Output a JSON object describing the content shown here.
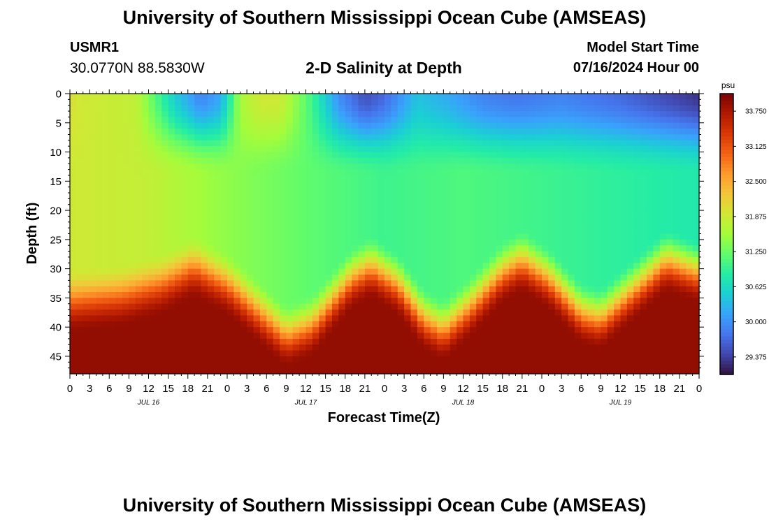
{
  "header": {
    "title": "University of Southern Mississippi Ocean Cube (AMSEAS)",
    "station": "USMR1",
    "coords": "30.0770N  88.5830W",
    "chart_title": "2-D Salinity at Depth",
    "start_label": "Model Start Time",
    "start_value": "07/16/2024 Hour 00"
  },
  "footer": {
    "title": "University of Southern Mississippi Ocean Cube (AMSEAS)"
  },
  "chart_data": {
    "type": "heatmap",
    "title": "2-D Salinity at Depth",
    "xlabel": "Forecast Time(Z)",
    "ylabel": "Depth (ft)",
    "x_ticks": [
      "0",
      "3",
      "6",
      "9",
      "12",
      "15",
      "18",
      "21",
      "0",
      "3",
      "6",
      "9",
      "12",
      "15",
      "18",
      "21",
      "0",
      "3",
      "6",
      "9",
      "12",
      "15",
      "18",
      "21",
      "0",
      "3",
      "6",
      "9",
      "12",
      "15",
      "18",
      "21",
      "0"
    ],
    "x_range_hours": [
      0,
      96
    ],
    "day_labels": [
      {
        "label": "JUL 16",
        "hour": 12
      },
      {
        "label": "JUL 17",
        "hour": 36
      },
      {
        "label": "JUL 18",
        "hour": 60
      },
      {
        "label": "JUL 19",
        "hour": 84
      }
    ],
    "y_ticks": [
      "0",
      "5",
      "10",
      "15",
      "20",
      "25",
      "30",
      "35",
      "40",
      "45"
    ],
    "y_range_ft": [
      0,
      48
    ],
    "y_inverted": true,
    "colorbar": {
      "unit": "psu",
      "min": 29.0625,
      "max": 34.0625,
      "tick_labels": [
        "33.750",
        "33.125",
        "32.500",
        "31.875",
        "31.250",
        "30.625",
        "30.000",
        "29.375"
      ],
      "tick_values": [
        33.75,
        33.125,
        32.5,
        31.875,
        31.25,
        30.625,
        30.0,
        29.375
      ]
    },
    "colormap": [
      "#30123b",
      "#4145ab",
      "#4675ed",
      "#39a2fc",
      "#1bcfd4",
      "#24eca6",
      "#61fc6c",
      "#a4fc3b",
      "#d1e835",
      "#f3c63a",
      "#fe9b2d",
      "#f36315",
      "#d93806",
      "#b11901",
      "#7a0402"
    ],
    "model": {
      "surface_keyframes": [
        {
          "hour": 0,
          "psu": 32.0
        },
        {
          "hour": 2,
          "psu": 31.9
        },
        {
          "hour": 10,
          "psu": 31.8
        },
        {
          "hour": 16,
          "psu": 30.5
        },
        {
          "hour": 20,
          "psu": 29.9
        },
        {
          "hour": 23,
          "psu": 30.2
        },
        {
          "hour": 26,
          "psu": 31.6
        },
        {
          "hour": 29,
          "psu": 31.9
        },
        {
          "hour": 32,
          "psu": 31.9
        },
        {
          "hour": 37,
          "psu": 31.0
        },
        {
          "hour": 41,
          "psu": 30.0
        },
        {
          "hour": 45,
          "psu": 29.5
        },
        {
          "hour": 48,
          "psu": 29.7
        },
        {
          "hour": 53,
          "psu": 30.4
        },
        {
          "hour": 58,
          "psu": 30.2
        },
        {
          "hour": 63,
          "psu": 29.9
        },
        {
          "hour": 68,
          "psu": 29.8
        },
        {
          "hour": 75,
          "psu": 29.9
        },
        {
          "hour": 84,
          "psu": 29.7
        },
        {
          "hour": 90,
          "psu": 29.5
        },
        {
          "hour": 96,
          "psu": 29.3
        }
      ],
      "mid_salinity_keyframes": [
        {
          "hour": 0,
          "psu": 31.9
        },
        {
          "hour": 12,
          "psu": 31.8
        },
        {
          "hour": 22,
          "psu": 31.5
        },
        {
          "hour": 36,
          "psu": 31.2
        },
        {
          "hour": 48,
          "psu": 31.0
        },
        {
          "hour": 60,
          "psu": 31.1
        },
        {
          "hour": 72,
          "psu": 31.0
        },
        {
          "hour": 84,
          "psu": 30.9
        },
        {
          "hour": 96,
          "psu": 30.8
        }
      ],
      "halocline_top_ft": [
        {
          "hour": 0,
          "ft": 30
        },
        {
          "hour": 8,
          "ft": 29
        },
        {
          "hour": 14,
          "ft": 27
        },
        {
          "hour": 19,
          "ft": 24
        },
        {
          "hour": 24,
          "ft": 27
        },
        {
          "hour": 30,
          "ft": 33
        },
        {
          "hour": 33,
          "ft": 36
        },
        {
          "hour": 37,
          "ft": 34
        },
        {
          "hour": 43,
          "ft": 26
        },
        {
          "hour": 46,
          "ft": 24
        },
        {
          "hour": 50,
          "ft": 27
        },
        {
          "hour": 54,
          "ft": 33
        },
        {
          "hour": 57,
          "ft": 35
        },
        {
          "hour": 61,
          "ft": 31
        },
        {
          "hour": 66,
          "ft": 25
        },
        {
          "hour": 69,
          "ft": 23
        },
        {
          "hour": 73,
          "ft": 26
        },
        {
          "hour": 78,
          "ft": 32
        },
        {
          "hour": 81,
          "ft": 33
        },
        {
          "hour": 86,
          "ft": 28
        },
        {
          "hour": 91,
          "ft": 23
        },
        {
          "hour": 96,
          "ft": 25
        }
      ],
      "bottom_psu": 33.9,
      "halocline_thickness_ft": 11,
      "surface_layer_ft": 14
    }
  }
}
